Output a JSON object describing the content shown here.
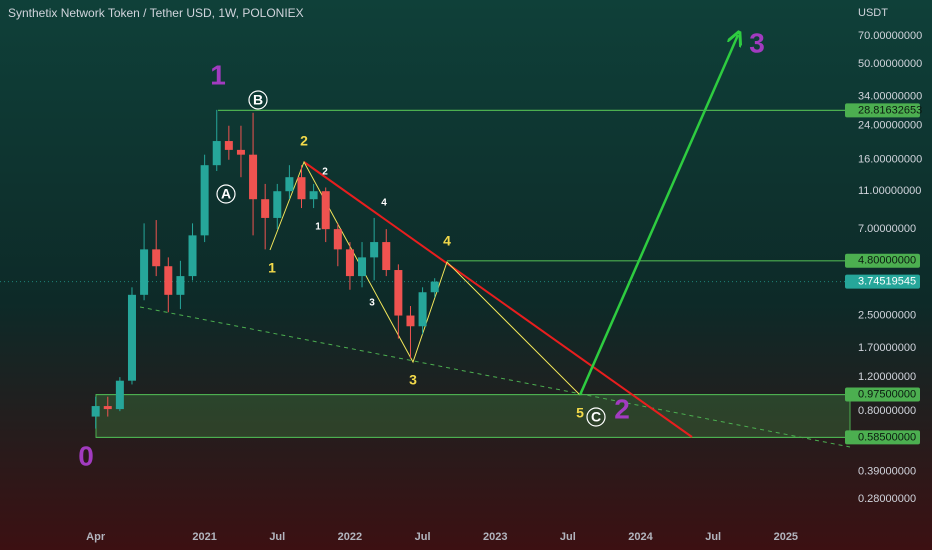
{
  "chart_data": {
    "type": "candlestick",
    "title": "Synthetix Network Token / Tether USD, 1W, POLONIEX",
    "y_label": "USDT",
    "log_scale": true,
    "grid": true,
    "up_color": "#26a69a",
    "down_color": "#ef5350",
    "x": [
      3,
      4,
      5,
      6,
      7,
      8,
      9,
      10,
      11,
      12,
      13,
      14,
      15,
      16,
      17,
      18,
      19,
      20,
      21,
      22,
      23,
      24,
      25,
      26,
      27,
      28,
      29,
      30,
      31
    ],
    "open": [
      0.75,
      0.85,
      0.82,
      1.15,
      3.2,
      5.5,
      4.5,
      3.2,
      4.0,
      6.5,
      15,
      20,
      18,
      17,
      10,
      8,
      11,
      13,
      10,
      11,
      7,
      5.5,
      4,
      5,
      6,
      4.3,
      2.5,
      2.2,
      3.3
    ],
    "high": [
      0.95,
      0.95,
      1.2,
      3.5,
      7.5,
      7.8,
      5.0,
      4.8,
      7.5,
      17,
      29,
      24,
      24,
      28,
      12,
      12,
      15,
      15,
      12,
      11.5,
      7.5,
      6,
      6,
      8,
      7,
      4.6,
      2.8,
      3.5,
      3.9
    ],
    "low": [
      0.65,
      0.75,
      0.8,
      1.1,
      3.0,
      4.0,
      2.6,
      2.7,
      3.8,
      6,
      14,
      16,
      13,
      6.5,
      5.5,
      7,
      10,
      9,
      9,
      6,
      4.5,
      3.4,
      3.5,
      3.8,
      4,
      1.9,
      1.5,
      2.0,
      3.1
    ],
    "close": [
      0.85,
      0.82,
      1.15,
      3.2,
      5.5,
      4.5,
      3.2,
      4.0,
      6.5,
      15,
      20,
      18,
      17,
      10,
      8,
      11,
      13,
      10,
      11,
      7,
      5.5,
      4,
      5,
      6,
      4.3,
      2.5,
      2.2,
      3.3,
      3.745
    ],
    "xlim": [
      -4.9,
      65.3
    ],
    "ylim": [
      0.206,
      107.4
    ],
    "xticks": [
      {
        "value": 3,
        "label": "Apr"
      },
      {
        "value": 12,
        "label": "2021"
      },
      {
        "value": 18,
        "label": "Jul"
      },
      {
        "value": 24,
        "label": "2022"
      },
      {
        "value": 30,
        "label": "Jul"
      },
      {
        "value": 36,
        "label": "2023"
      },
      {
        "value": 42,
        "label": "Jul"
      },
      {
        "value": 48,
        "label": "2024"
      },
      {
        "value": 54,
        "label": "Jul"
      },
      {
        "value": 60,
        "label": "2025"
      }
    ],
    "yticks": [
      {
        "value": 70,
        "label": "70.00000000"
      },
      {
        "value": 50,
        "label": "50.00000000"
      },
      {
        "value": 34,
        "label": "34.00000000"
      },
      {
        "value": 24,
        "label": "24.00000000"
      },
      {
        "value": 16,
        "label": "16.00000000"
      },
      {
        "value": 11,
        "label": "11.00000000"
      },
      {
        "value": 7,
        "label": "7.00000000"
      },
      {
        "value": 2.5,
        "label": "2.50000000"
      },
      {
        "value": 1.7,
        "label": "1.70000000"
      },
      {
        "value": 1.2,
        "label": "1.20000000"
      },
      {
        "value": 0.8,
        "label": "0.80000000"
      },
      {
        "value": 0.39,
        "label": "0.39000000"
      },
      {
        "value": 0.28,
        "label": "0.28000000"
      }
    ],
    "price_levels": [
      {
        "value": 28.81632653,
        "label": "28.81632653"
      },
      {
        "value": 4.8,
        "label": "4.80000000"
      },
      {
        "value": 0.975,
        "label": "0.97500000"
      },
      {
        "value": 0.585,
        "label": "0.58500000"
      }
    ],
    "level_color": "#4caf50",
    "current_price": {
      "value": 3.74519545,
      "label": "3.74519545"
    },
    "annotations": [
      {
        "text": "0",
        "color": "#a23bc0"
      },
      {
        "text": "1",
        "color": "#a23bc0"
      },
      {
        "text": "2",
        "color": "#a23bc0"
      },
      {
        "text": "3",
        "color": "#a23bc0"
      },
      {
        "text": "B",
        "color": "#ffffff"
      },
      {
        "text": "A",
        "color": "#ffffff"
      },
      {
        "text": "C",
        "color": "#ffffff"
      },
      {
        "text": "2",
        "color": "#f2d94a"
      },
      {
        "text": "1",
        "color": "#f2d94a"
      },
      {
        "text": "4",
        "color": "#f2d94a"
      },
      {
        "text": "3",
        "color": "#f2d94a"
      },
      {
        "text": "5",
        "color": "#f2d94a"
      },
      {
        "text": "2",
        "color": "#ffffff"
      },
      {
        "text": "1",
        "color": "#ffffff"
      },
      {
        "text": "4",
        "color": "#ffffff"
      },
      {
        "text": "3",
        "color": "#ffffff"
      }
    ]
  }
}
